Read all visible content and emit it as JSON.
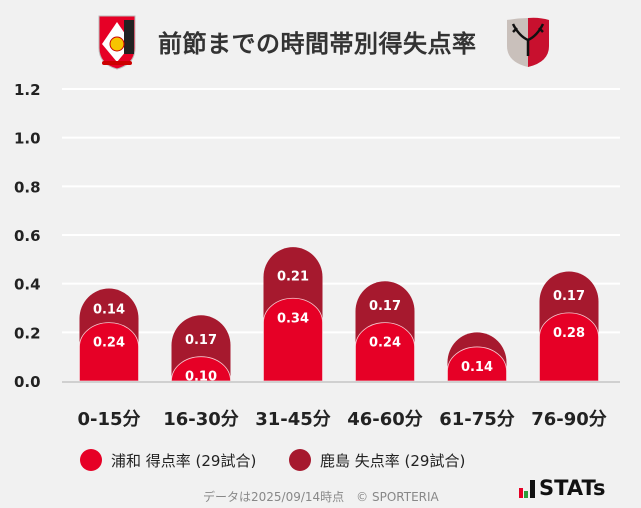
{
  "header": {
    "title": "前節までの時間帯別得失点率",
    "home_logo": "urawa-reds-crest",
    "away_logo": "kashima-antlers-crest"
  },
  "chart_data": {
    "type": "bar",
    "stacked": true,
    "title": "前節までの時間帯別得失点率",
    "categories": [
      "0-15分",
      "16-30分",
      "31-45分",
      "46-60分",
      "61-75分",
      "76-90分"
    ],
    "series": [
      {
        "name": "浦和 得点率 (29試合)",
        "color": "#e60026",
        "values": [
          0.24,
          0.1,
          0.34,
          0.24,
          0.14,
          0.28
        ],
        "labels": [
          "0.24",
          "0.10",
          "0.34",
          "0.24",
          "0.14",
          "0.28"
        ]
      },
      {
        "name": "鹿島 失点率 (29試合)",
        "color": "#a6192e",
        "values": [
          0.14,
          0.17,
          0.21,
          0.17,
          0.06,
          0.17
        ],
        "labels": [
          "0.14",
          "0.17",
          "0.21",
          "0.17",
          "",
          "0.17"
        ]
      }
    ],
    "yticks": [
      "0.0",
      "0.2",
      "0.4",
      "0.6",
      "0.8",
      "1.0",
      "1.2"
    ],
    "ylim": [
      0,
      1.2
    ],
    "grid": true,
    "legend": "bottom-left"
  },
  "footer": {
    "note": "データは2025/09/14時点　© SPORTERIA",
    "brand": "STATs"
  }
}
